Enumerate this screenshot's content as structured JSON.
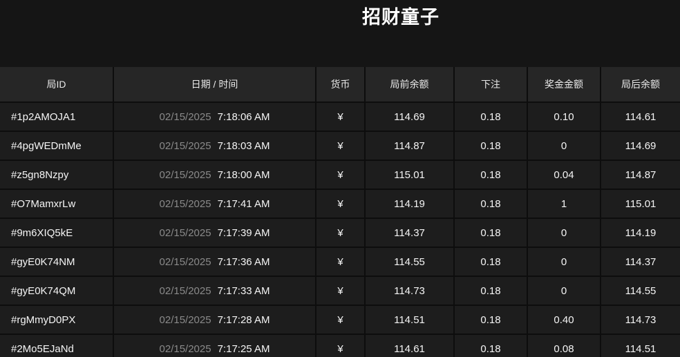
{
  "title": "招财童子",
  "colors": {
    "page_background": "#151515",
    "header_background": "#262626",
    "row_background": "#1d1d1d",
    "border": "#0d0d0d",
    "date_muted_text": "#8a8a8a",
    "primary_text": "#f5f5f5"
  },
  "table": {
    "columns": [
      "局ID",
      "日期 / 时间",
      "货币",
      "局前余额",
      "下注",
      "奖金金额",
      "局后余额"
    ],
    "rows": [
      {
        "id": "#1p2AMOJA1",
        "date": "02/15/2025",
        "time": "7:18:06 AM",
        "currency": "¥",
        "balance_before": "114.69",
        "bet": "0.18",
        "prize": "0.10",
        "balance_after": "114.61"
      },
      {
        "id": "#4pgWEDmMe",
        "date": "02/15/2025",
        "time": "7:18:03 AM",
        "currency": "¥",
        "balance_before": "114.87",
        "bet": "0.18",
        "prize": "0",
        "balance_after": "114.69"
      },
      {
        "id": "#z5gn8Nzpy",
        "date": "02/15/2025",
        "time": "7:18:00 AM",
        "currency": "¥",
        "balance_before": "115.01",
        "bet": "0.18",
        "prize": "0.04",
        "balance_after": "114.87"
      },
      {
        "id": "#O7MamxrLw",
        "date": "02/15/2025",
        "time": "7:17:41 AM",
        "currency": "¥",
        "balance_before": "114.19",
        "bet": "0.18",
        "prize": "1",
        "balance_after": "115.01"
      },
      {
        "id": "#9m6XIQ5kE",
        "date": "02/15/2025",
        "time": "7:17:39 AM",
        "currency": "¥",
        "balance_before": "114.37",
        "bet": "0.18",
        "prize": "0",
        "balance_after": "114.19"
      },
      {
        "id": "#gyE0K74NM",
        "date": "02/15/2025",
        "time": "7:17:36 AM",
        "currency": "¥",
        "balance_before": "114.55",
        "bet": "0.18",
        "prize": "0",
        "balance_after": "114.37"
      },
      {
        "id": "#gyE0K74QM",
        "date": "02/15/2025",
        "time": "7:17:33 AM",
        "currency": "¥",
        "balance_before": "114.73",
        "bet": "0.18",
        "prize": "0",
        "balance_after": "114.55"
      },
      {
        "id": "#rgMmyD0PX",
        "date": "02/15/2025",
        "time": "7:17:28 AM",
        "currency": "¥",
        "balance_before": "114.51",
        "bet": "0.18",
        "prize": "0.40",
        "balance_after": "114.73"
      },
      {
        "id": "#2Mo5EJaNd",
        "date": "02/15/2025",
        "time": "7:17:25 AM",
        "currency": "¥",
        "balance_before": "114.61",
        "bet": "0.18",
        "prize": "0.08",
        "balance_after": "114.51"
      }
    ]
  }
}
